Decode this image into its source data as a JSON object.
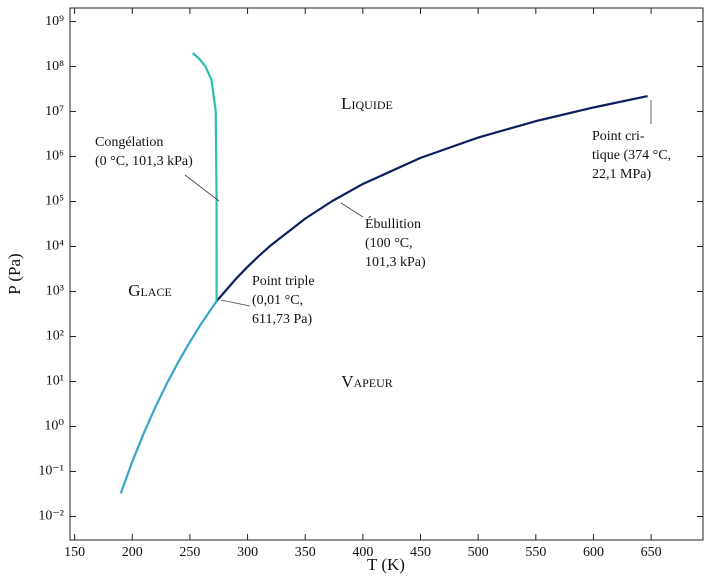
{
  "chart_data": {
    "type": "line",
    "x_label": "T (K)",
    "y_label": "P (Pa)",
    "xlim": [
      146,
      695
    ],
    "xticks": [
      150,
      200,
      250,
      300,
      350,
      400,
      450,
      500,
      550,
      600,
      650
    ],
    "ylim": [
      0.003,
      2000000000
    ],
    "log_y": true,
    "yticks": [
      {
        "value": 0.01,
        "label": "10⁻²"
      },
      {
        "value": 0.1,
        "label": "10⁻¹"
      },
      {
        "value": 1,
        "label": "10⁰"
      },
      {
        "value": 10,
        "label": "10¹"
      },
      {
        "value": 100,
        "label": "10²"
      },
      {
        "value": 1000,
        "label": "10³"
      },
      {
        "value": 10000,
        "label": "10⁴"
      },
      {
        "value": 100000,
        "label": "10⁵"
      },
      {
        "value": 1000000,
        "label": "10⁶"
      },
      {
        "value": 10000000,
        "label": "10⁷"
      },
      {
        "value": 100000000,
        "label": "10⁸"
      },
      {
        "value": 1000000000,
        "label": "10⁹"
      }
    ],
    "series": [
      {
        "color": "#37a5c9",
        "x": [
          190,
          200,
          210,
          220,
          230,
          240,
          250,
          260,
          273.16
        ],
        "values": [
          0.0326,
          0.165,
          0.71,
          2.68,
          8.99,
          27.4,
          76,
          196,
          611.73
        ]
      },
      {
        "color": "#0d1f5c",
        "x": [
          273.16,
          290,
          300,
          310,
          320,
          350,
          373.15,
          400,
          450,
          500,
          550,
          600,
          647
        ],
        "values": [
          611.73,
          1920,
          3537,
          6230,
          10550,
          41680,
          101325,
          245800,
          932000,
          2640000,
          6120000,
          12300000,
          22060000
        ]
      },
      {
        "color": "#2bbfb0",
        "x": [
          273.16,
          273.15,
          272.4,
          268.7,
          263.6,
          258,
          252.5
        ],
        "values": [
          611.73,
          101325,
          10000000,
          50000000,
          100000000,
          150000000,
          200000000
        ]
      }
    ],
    "annotations": {
      "regions": [
        "Liquide",
        "Glace",
        "Vapeur"
      ],
      "notes": [
        [
          "Congélation",
          "(0 °C, 101,3 kPa)"
        ],
        [
          "Point triple",
          "(0,01 °C,",
          "611,73 Pa)"
        ],
        [
          "Ébullition",
          "(100 °C,",
          "101,3 kPa)"
        ],
        [
          "Point cri-",
          "tique (374 °C,",
          "22,1 MPa)"
        ]
      ]
    }
  }
}
